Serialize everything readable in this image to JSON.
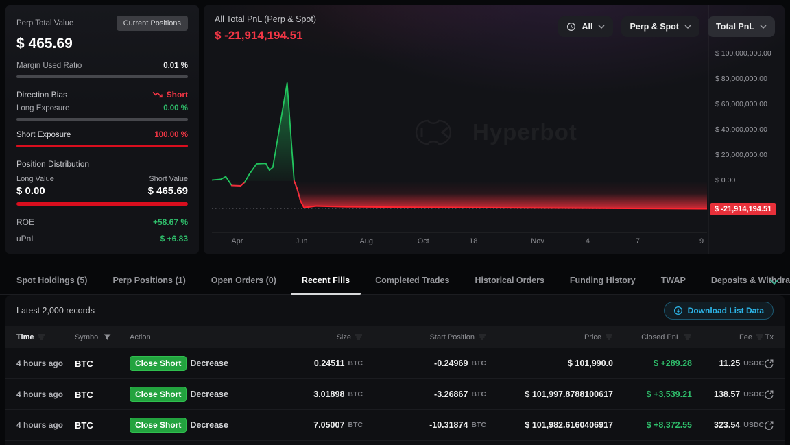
{
  "watermark_text": "Hyperbot",
  "left_panel": {
    "title": "Perp Total Value",
    "current_positions_label": "Current Positions",
    "total_value": "$ 465.69",
    "margin_used_label": "Margin Used Ratio",
    "margin_used_value": "0.01 %",
    "direction_bias_label": "Direction Bias",
    "direction_bias_value": "Short",
    "long_exposure_label": "Long Exposure",
    "long_exposure_value": "0.00 %",
    "short_exposure_label": "Short Exposure",
    "short_exposure_value": "100.00 %",
    "position_distribution_label": "Position Distribution",
    "long_value_label": "Long Value",
    "short_value_label": "Short Value",
    "long_value": "$ 0.00",
    "short_value": "$ 465.69",
    "roe_label": "ROE",
    "roe_value": "+58.67 %",
    "upnl_label": "uPnL",
    "upnl_value": "$ +6.83",
    "bars": {
      "margin_pct": 0.01,
      "long_pct": 0,
      "short_pct": 100,
      "distribution_short_pct": 100
    }
  },
  "chart_panel": {
    "title": "All Total PnL (Perp & Spot)",
    "value": "$ -21,914,194.51",
    "filters": {
      "time": "All",
      "scope": "Perp & Spot",
      "metric": "Total PnL"
    }
  },
  "chart_data": {
    "type": "area",
    "title": "All Total PnL (Perp & Spot)",
    "unit": "USD",
    "ylim": [
      -40000000,
      93000000
    ],
    "grid": false,
    "legend": "none",
    "y_ticks": [
      {
        "label": "$ 100,000,000.00",
        "value": 100000000
      },
      {
        "label": "$ 80,000,000.00",
        "value": 80000000
      },
      {
        "label": "$ 60,000,000.00",
        "value": 60000000
      },
      {
        "label": "$ 40,000,000.00",
        "value": 40000000
      },
      {
        "label": "$ 20,000,000.00",
        "value": 20000000
      },
      {
        "label": "$ 0.00",
        "value": 0
      }
    ],
    "x_ticks": [
      {
        "label": "Apr",
        "pos": 0.051
      },
      {
        "label": "Jun",
        "pos": 0.181
      },
      {
        "label": "Aug",
        "pos": 0.312
      },
      {
        "label": "Oct",
        "pos": 0.427
      },
      {
        "label": "18",
        "pos": 0.528
      },
      {
        "label": "Nov",
        "pos": 0.658
      },
      {
        "label": "4",
        "pos": 0.759
      },
      {
        "label": "7",
        "pos": 0.86
      },
      {
        "label": "9",
        "pos": 0.989
      }
    ],
    "series": [
      {
        "name": "Total PnL",
        "points": [
          [
            0.0,
            800000
          ],
          [
            0.018,
            1400000
          ],
          [
            0.028,
            3500000
          ],
          [
            0.04,
            -3500000
          ],
          [
            0.058,
            -3800000
          ],
          [
            0.066,
            -1000000
          ],
          [
            0.075,
            5000000
          ],
          [
            0.09,
            13500000
          ],
          [
            0.109,
            13900000
          ],
          [
            0.116,
            8600000
          ],
          [
            0.123,
            10800000
          ],
          [
            0.152,
            77300000
          ],
          [
            0.166,
            0
          ],
          [
            0.172,
            -5900000
          ],
          [
            0.179,
            -15700000
          ],
          [
            0.186,
            -21000000
          ],
          [
            0.21,
            -19800000
          ],
          [
            0.27,
            -20300000
          ],
          [
            0.43,
            -20800000
          ],
          [
            0.7,
            -21300000
          ],
          [
            1.0,
            -21914194.51
          ]
        ]
      }
    ],
    "last_value": -21914194.51,
    "last_value_label": "$ -21,914,194.51",
    "colors": {
      "positive": "#22c55e",
      "negative": "#ef2f3c",
      "negative_bright": "#ff2430"
    }
  },
  "tabs": {
    "items": [
      {
        "label": "Spot Holdings (5)",
        "active": false
      },
      {
        "label": "Perp Positions (1)",
        "active": false
      },
      {
        "label": "Open Orders (0)",
        "active": false
      },
      {
        "label": "Recent Fills",
        "active": true
      },
      {
        "label": "Completed Trades",
        "active": false
      },
      {
        "label": "Historical Orders",
        "active": false
      },
      {
        "label": "Funding History",
        "active": false
      },
      {
        "label": "TWAP",
        "active": false
      },
      {
        "label": "Deposits & Withdraw",
        "active": false,
        "truncated": true
      }
    ]
  },
  "records": {
    "summary": "Latest 2,000 records",
    "download_label": "Download List Data"
  },
  "table": {
    "columns": [
      {
        "label": "Time",
        "icon": "sort",
        "emphasis": true
      },
      {
        "label": "Symbol",
        "icon": "filter"
      },
      {
        "label": "Action"
      },
      {
        "label": "Size",
        "icon": "sort",
        "align": "right"
      },
      {
        "label": "Start Position",
        "icon": "sort",
        "align": "right"
      },
      {
        "label": "Price",
        "icon": "sort",
        "align": "right"
      },
      {
        "label": "Closed PnL",
        "icon": "sort",
        "align": "right"
      },
      {
        "label": "Fee",
        "icon": "sort",
        "align": "right"
      },
      {
        "label": "Tx",
        "align": "right"
      }
    ],
    "rows": [
      {
        "time": "4 hours ago",
        "symbol": "BTC",
        "action_badge": "Close Short",
        "action_type": "Decrease",
        "size": "0.24511",
        "size_unit": "BTC",
        "start": "-0.24969",
        "start_unit": "BTC",
        "price": "$ 101,990.0",
        "closed_pnl": "$ +289.28",
        "fee": "11.25",
        "fee_unit": "USDC"
      },
      {
        "time": "4 hours ago",
        "symbol": "BTC",
        "action_badge": "Close Short",
        "action_type": "Decrease",
        "size": "3.01898",
        "size_unit": "BTC",
        "start": "-3.26867",
        "start_unit": "BTC",
        "price": "$ 101,997.8788100617",
        "closed_pnl": "$ +3,539.21",
        "fee": "138.57",
        "fee_unit": "USDC"
      },
      {
        "time": "4 hours ago",
        "symbol": "BTC",
        "action_badge": "Close Short",
        "action_type": "Decrease",
        "size": "7.05007",
        "size_unit": "BTC",
        "start": "-10.31874",
        "start_unit": "BTC",
        "price": "$ 101,982.6160406917",
        "closed_pnl": "$ +8,372.55",
        "fee": "323.54",
        "fee_unit": "USDC"
      }
    ]
  }
}
